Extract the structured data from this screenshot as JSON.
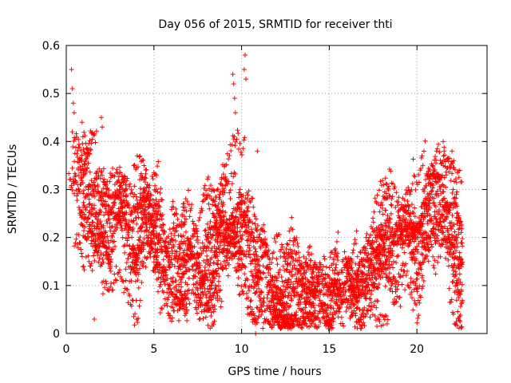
{
  "chart_data": {
    "type": "scatter",
    "title": "Day 056 of 2015, SRMTID for receiver thti",
    "xlabel": "GPS time / hours",
    "ylabel": "SRMTID / TECUs",
    "xlim": [
      0,
      24
    ],
    "ylim": [
      0,
      0.6
    ],
    "xticks": [
      0,
      5,
      10,
      15,
      20
    ],
    "yticks": [
      0,
      0.1,
      0.2,
      0.3,
      0.4,
      0.5,
      0.6
    ],
    "xtick_labels": [
      "0",
      "5",
      "10",
      "15",
      "20"
    ],
    "ytick_labels": [
      "0",
      "0.1",
      "0.2",
      "0.3",
      "0.4",
      "0.5",
      "0.6"
    ],
    "grid": true,
    "marker": "+",
    "series_color": "#ff0000",
    "data_range_hours": [
      0,
      22.6
    ],
    "trend": [
      {
        "x": 0.0,
        "y": 0.26
      },
      {
        "x": 0.5,
        "y": 0.29
      },
      {
        "x": 1.0,
        "y": 0.27
      },
      {
        "x": 1.5,
        "y": 0.24
      },
      {
        "x": 2.0,
        "y": 0.25
      },
      {
        "x": 2.5,
        "y": 0.22
      },
      {
        "x": 3.0,
        "y": 0.25
      },
      {
        "x": 3.5,
        "y": 0.22
      },
      {
        "x": 4.0,
        "y": 0.21
      },
      {
        "x": 4.5,
        "y": 0.24
      },
      {
        "x": 5.0,
        "y": 0.2
      },
      {
        "x": 5.5,
        "y": 0.19
      },
      {
        "x": 6.0,
        "y": 0.18
      },
      {
        "x": 6.5,
        "y": 0.15
      },
      {
        "x": 7.0,
        "y": 0.15
      },
      {
        "x": 7.5,
        "y": 0.14
      },
      {
        "x": 8.0,
        "y": 0.17
      },
      {
        "x": 8.5,
        "y": 0.2
      },
      {
        "x": 9.0,
        "y": 0.22
      },
      {
        "x": 9.5,
        "y": 0.24
      },
      {
        "x": 10.0,
        "y": 0.22
      },
      {
        "x": 10.5,
        "y": 0.19
      },
      {
        "x": 11.0,
        "y": 0.16
      },
      {
        "x": 11.5,
        "y": 0.13
      },
      {
        "x": 12.0,
        "y": 0.1
      },
      {
        "x": 12.5,
        "y": 0.08
      },
      {
        "x": 13.0,
        "y": 0.08
      },
      {
        "x": 13.5,
        "y": 0.07
      },
      {
        "x": 14.0,
        "y": 0.07
      },
      {
        "x": 14.5,
        "y": 0.08
      },
      {
        "x": 15.0,
        "y": 0.08
      },
      {
        "x": 15.5,
        "y": 0.1
      },
      {
        "x": 16.0,
        "y": 0.12
      },
      {
        "x": 16.5,
        "y": 0.13
      },
      {
        "x": 17.0,
        "y": 0.11
      },
      {
        "x": 17.5,
        "y": 0.15
      },
      {
        "x": 18.0,
        "y": 0.18
      },
      {
        "x": 18.5,
        "y": 0.19
      },
      {
        "x": 19.0,
        "y": 0.2
      },
      {
        "x": 19.5,
        "y": 0.18
      },
      {
        "x": 20.0,
        "y": 0.17
      },
      {
        "x": 20.5,
        "y": 0.25
      },
      {
        "x": 21.0,
        "y": 0.27
      },
      {
        "x": 21.5,
        "y": 0.25
      },
      {
        "x": 22.0,
        "y": 0.23
      },
      {
        "x": 22.5,
        "y": 0.17
      }
    ],
    "spread": [
      {
        "x": 0.0,
        "s": 0.07
      },
      {
        "x": 3.0,
        "s": 0.06
      },
      {
        "x": 6.0,
        "s": 0.05
      },
      {
        "x": 9.0,
        "s": 0.06
      },
      {
        "x": 12.0,
        "s": 0.04
      },
      {
        "x": 15.0,
        "s": 0.03
      },
      {
        "x": 18.0,
        "s": 0.04
      },
      {
        "x": 21.0,
        "s": 0.06
      },
      {
        "x": 22.6,
        "s": 0.05
      }
    ],
    "scatter_sample_count": 1400,
    "highlight_points": [
      {
        "x": 0.3,
        "y": 0.55
      },
      {
        "x": 0.35,
        "y": 0.51
      },
      {
        "x": 0.4,
        "y": 0.48
      },
      {
        "x": 0.45,
        "y": 0.46
      },
      {
        "x": 0.9,
        "y": 0.44
      },
      {
        "x": 0.95,
        "y": 0.41
      },
      {
        "x": 2.0,
        "y": 0.45
      },
      {
        "x": 2.05,
        "y": 0.43
      },
      {
        "x": 9.5,
        "y": 0.54
      },
      {
        "x": 9.55,
        "y": 0.52
      },
      {
        "x": 9.6,
        "y": 0.49
      },
      {
        "x": 9.65,
        "y": 0.46
      },
      {
        "x": 10.2,
        "y": 0.58
      },
      {
        "x": 10.15,
        "y": 0.55
      },
      {
        "x": 10.25,
        "y": 0.53
      },
      {
        "x": 10.9,
        "y": 0.38
      },
      {
        "x": 21.5,
        "y": 0.4
      },
      {
        "x": 21.55,
        "y": 0.38
      },
      {
        "x": 22.0,
        "y": 0.38
      },
      {
        "x": 22.1,
        "y": 0.36
      },
      {
        "x": 1.6,
        "y": 0.03
      },
      {
        "x": 10.8,
        "y": 0.0
      },
      {
        "x": 12.6,
        "y": 0.02
      },
      {
        "x": 13.6,
        "y": 0.02
      }
    ]
  }
}
